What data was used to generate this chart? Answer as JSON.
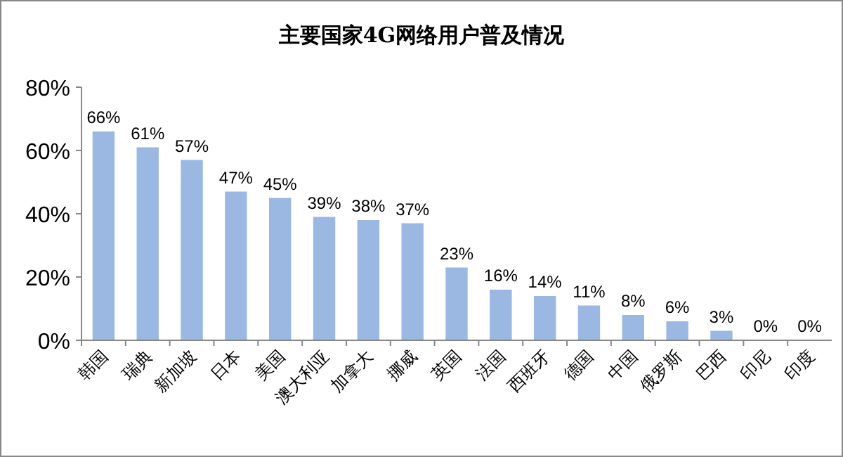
{
  "chart_data": {
    "type": "bar",
    "title": "主要国家4G网络用户普及情况",
    "categories": [
      "韩国",
      "瑞典",
      "新加坡",
      "日本",
      "美国",
      "澳大利亚",
      "加拿大",
      "挪威",
      "英国",
      "法国",
      "西班牙",
      "德国",
      "中国",
      "俄罗斯",
      "巴西",
      "印尼",
      "印度"
    ],
    "values": [
      66,
      61,
      57,
      47,
      45,
      39,
      38,
      37,
      23,
      16,
      14,
      11,
      8,
      6,
      3,
      0,
      0
    ],
    "value_labels": [
      "66%",
      "61%",
      "57%",
      "47%",
      "45%",
      "39%",
      "38%",
      "37%",
      "23%",
      "16%",
      "14%",
      "11%",
      "8%",
      "6%",
      "3%",
      "0%",
      "0%"
    ],
    "color": "#9bb8e3",
    "ylim": [
      0,
      80
    ],
    "yticks": [
      {
        "value": 0,
        "label": "0%"
      },
      {
        "value": 20,
        "label": "20%"
      },
      {
        "value": 40,
        "label": "40%"
      },
      {
        "value": 60,
        "label": "60%"
      },
      {
        "value": 80,
        "label": "80%"
      }
    ]
  }
}
